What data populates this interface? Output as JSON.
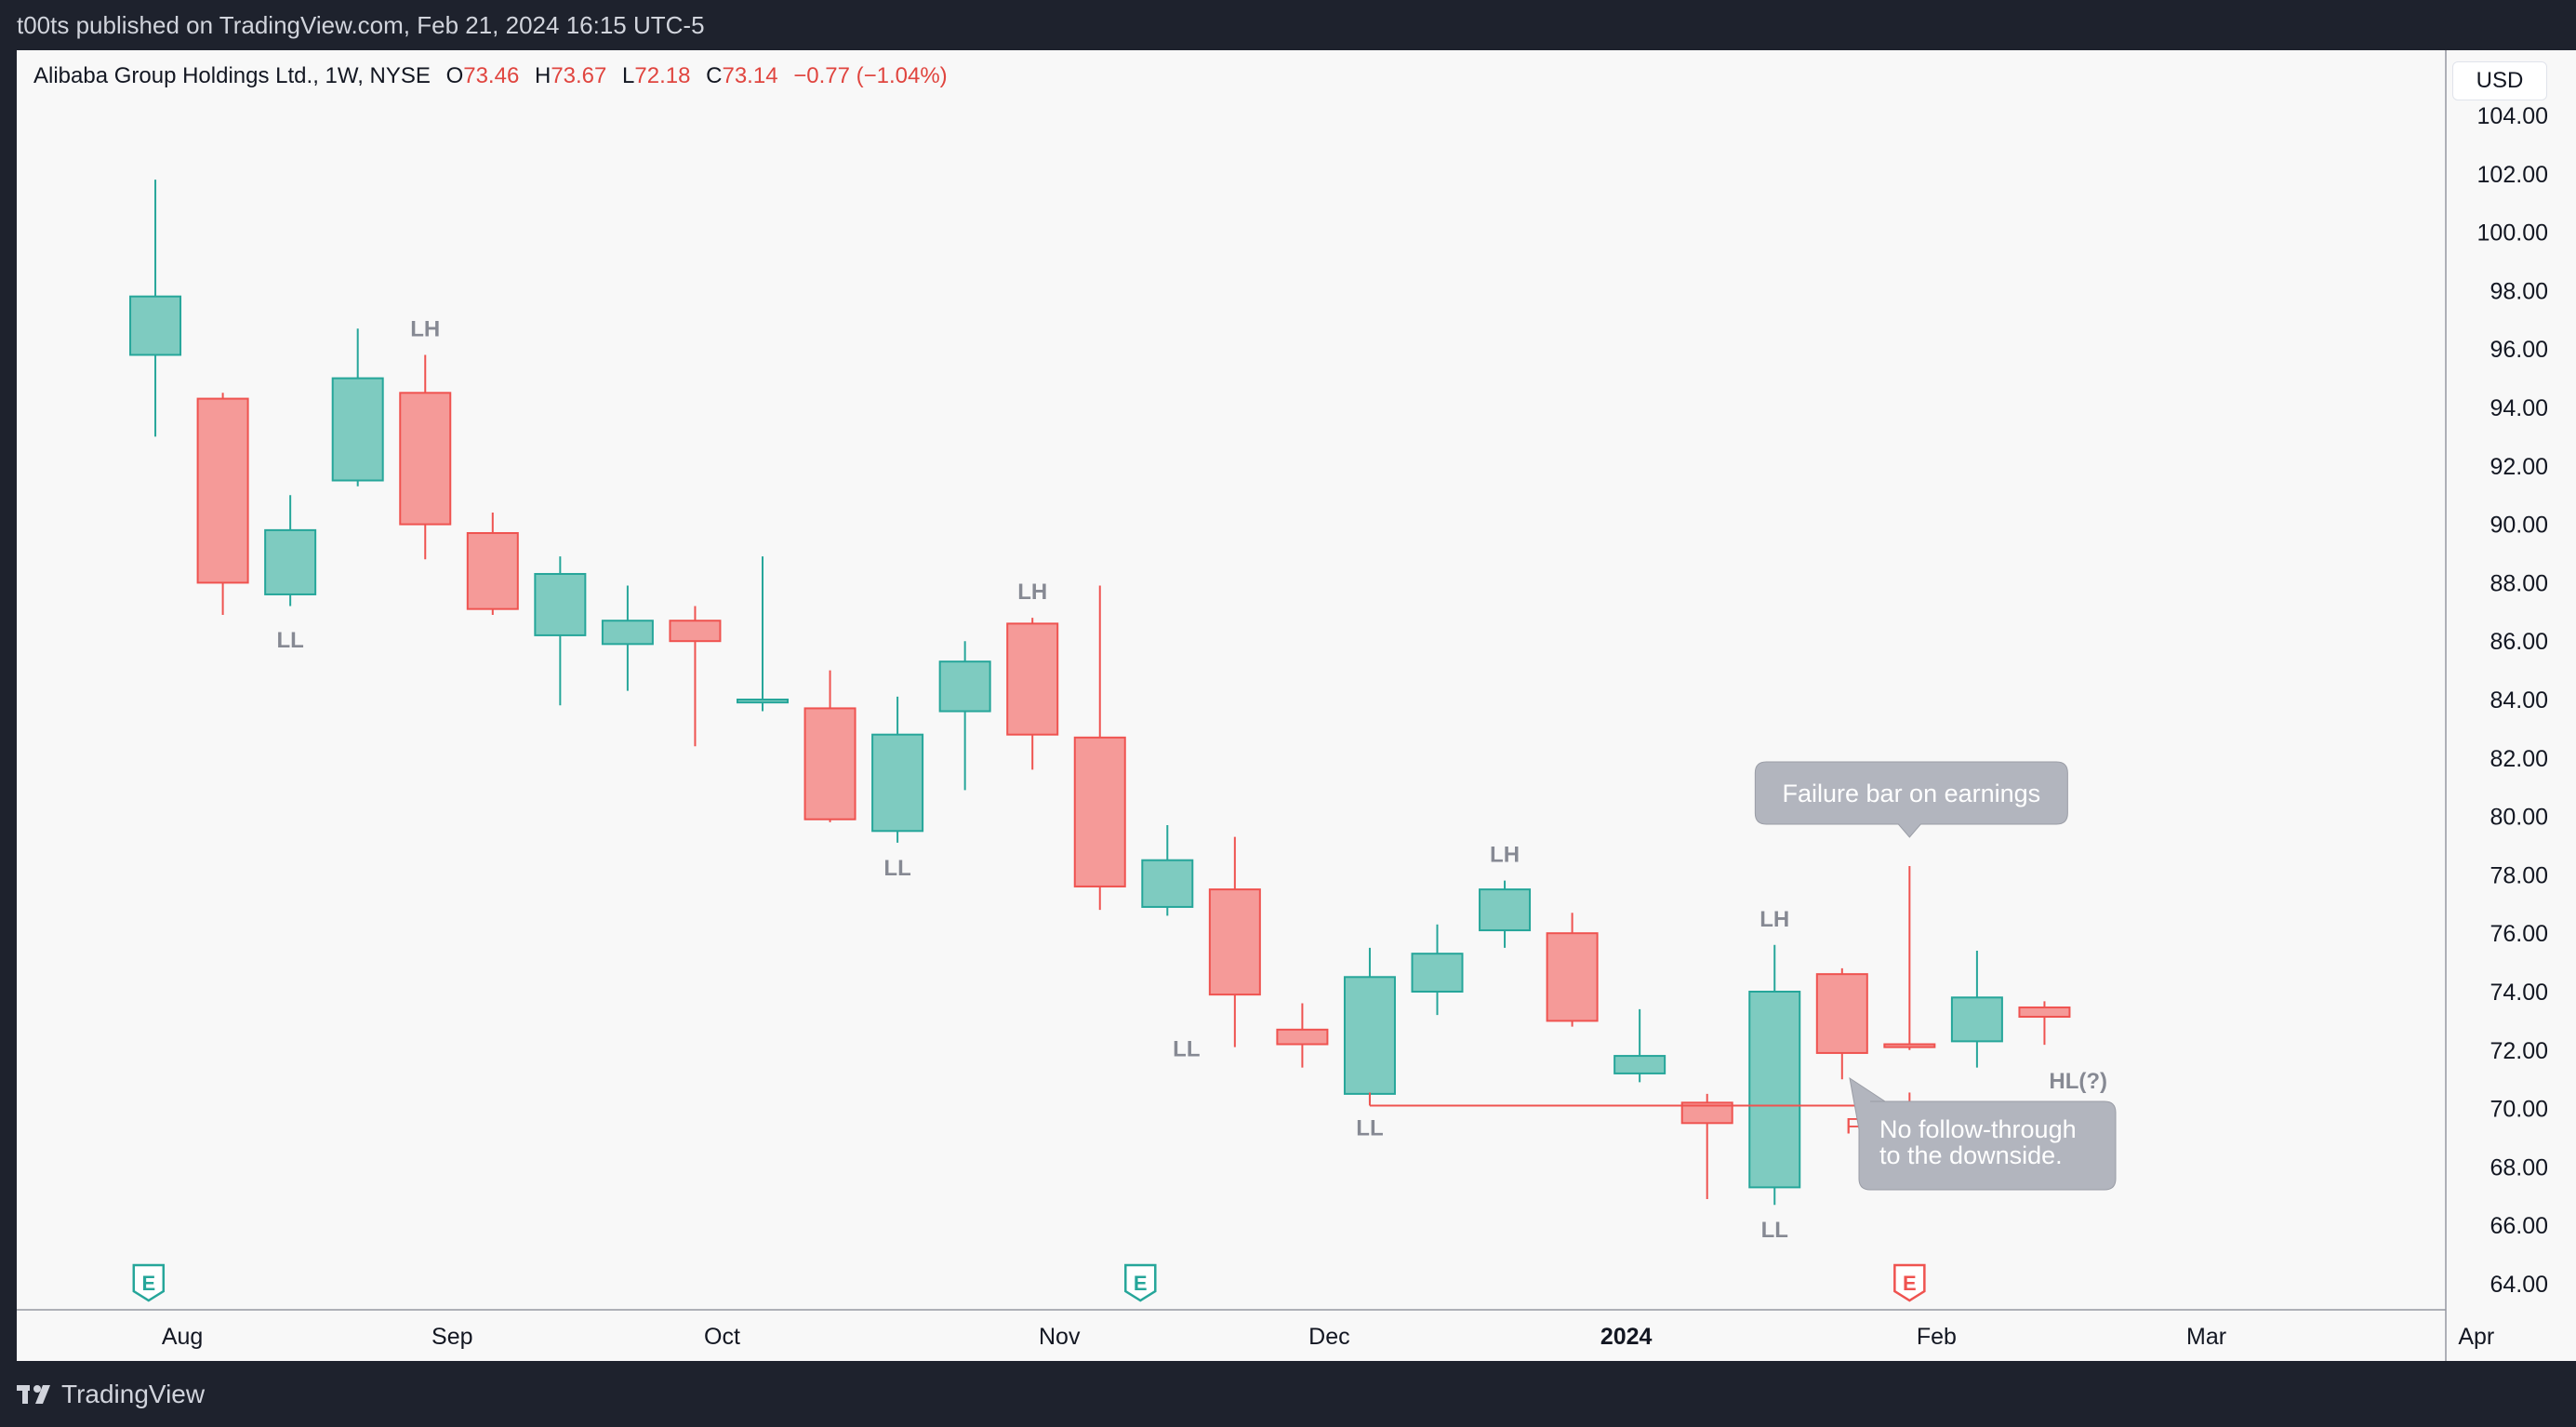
{
  "topbar": {
    "text": "t00ts published on TradingView.com, Feb 21, 2024 16:15 UTC-5"
  },
  "header": {
    "symbol": "Alibaba Group Holdings Ltd., 1W, NYSE",
    "open_label": "O",
    "open": "73.46",
    "high_label": "H",
    "high": "73.67",
    "low_label": "L",
    "low": "72.18",
    "close_label": "C",
    "close": "73.14",
    "change": "−0.77 (−1.04%)"
  },
  "currency_button": "USD",
  "footer": {
    "brand": "TradingView"
  },
  "colors": {
    "up": "#26a69a",
    "up_fill": "#7ecbc0",
    "down": "#ef5350",
    "down_fill": "#f59a98",
    "label": "#868993",
    "callout": "#b2b5be"
  },
  "chart_data": {
    "type": "candlestick",
    "title": "",
    "xlabel": "",
    "ylabel": "",
    "ylim": [
      63,
      104.5
    ],
    "y_ticks": [
      "64.00",
      "66.00",
      "68.00",
      "70.00",
      "72.00",
      "74.00",
      "76.00",
      "78.00",
      "80.00",
      "82.00",
      "84.00",
      "86.00",
      "88.00",
      "90.00",
      "92.00",
      "94.00",
      "96.00",
      "98.00",
      "100.00",
      "102.00",
      "104.00"
    ],
    "x_ticks": [
      {
        "week": -0.6,
        "label": "Aug",
        "bold": false
      },
      {
        "week": 3.4,
        "label": "Sep",
        "bold": false
      },
      {
        "week": 7.4,
        "label": "Oct",
        "bold": false
      },
      {
        "week": 12.4,
        "label": "Nov",
        "bold": false
      },
      {
        "week": 16.4,
        "label": "Dec",
        "bold": false
      },
      {
        "week": 20.8,
        "label": "2024",
        "bold": true
      },
      {
        "week": 25.4,
        "label": "Feb",
        "bold": false
      },
      {
        "week": 29.4,
        "label": "Mar",
        "bold": false
      },
      {
        "week": 33.4,
        "label": "Apr",
        "bold": false
      }
    ],
    "candles": [
      {
        "week": -1,
        "o": 95.8,
        "h": 101.8,
        "l": 93.0,
        "c": 97.8
      },
      {
        "week": 0,
        "o": 94.3,
        "h": 94.5,
        "l": 86.9,
        "c": 88.0
      },
      {
        "week": 1,
        "o": 87.6,
        "h": 91.0,
        "l": 87.2,
        "c": 89.8
      },
      {
        "week": 2,
        "o": 91.5,
        "h": 96.7,
        "l": 91.3,
        "c": 95.0
      },
      {
        "week": 3,
        "o": 94.5,
        "h": 95.8,
        "l": 88.8,
        "c": 90.0
      },
      {
        "week": 4,
        "o": 89.7,
        "h": 90.4,
        "l": 86.9,
        "c": 87.1
      },
      {
        "week": 5,
        "o": 86.2,
        "h": 88.9,
        "l": 83.8,
        "c": 88.3
      },
      {
        "week": 6,
        "o": 85.9,
        "h": 87.9,
        "l": 84.3,
        "c": 86.7
      },
      {
        "week": 7,
        "o": 86.7,
        "h": 87.2,
        "l": 82.4,
        "c": 86.0
      },
      {
        "week": 8,
        "o": 83.9,
        "h": 88.9,
        "l": 83.6,
        "c": 84.0
      },
      {
        "week": 9,
        "o": 83.7,
        "h": 85.0,
        "l": 79.8,
        "c": 79.9
      },
      {
        "week": 10,
        "o": 79.5,
        "h": 84.1,
        "l": 79.1,
        "c": 82.8
      },
      {
        "week": 11,
        "o": 83.6,
        "h": 86.0,
        "l": 80.9,
        "c": 85.3
      },
      {
        "week": 12,
        "o": 86.6,
        "h": 86.8,
        "l": 81.6,
        "c": 82.8
      },
      {
        "week": 13,
        "o": 82.7,
        "h": 87.9,
        "l": 76.8,
        "c": 77.6
      },
      {
        "week": 14,
        "o": 76.9,
        "h": 79.7,
        "l": 76.6,
        "c": 78.5
      },
      {
        "week": 15,
        "o": 77.5,
        "h": 79.3,
        "l": 72.1,
        "c": 73.9
      },
      {
        "week": 16,
        "o": 72.7,
        "h": 73.6,
        "l": 71.4,
        "c": 72.2
      },
      {
        "week": 17,
        "o": 70.5,
        "h": 75.5,
        "l": 70.2,
        "c": 74.5
      },
      {
        "week": 18,
        "o": 74.0,
        "h": 76.3,
        "l": 73.2,
        "c": 75.3
      },
      {
        "week": 19,
        "o": 76.1,
        "h": 77.8,
        "l": 75.5,
        "c": 77.5
      },
      {
        "week": 20,
        "o": 76.0,
        "h": 76.7,
        "l": 72.8,
        "c": 73.0
      },
      {
        "week": 21,
        "o": 71.2,
        "h": 73.4,
        "l": 70.9,
        "c": 71.8
      },
      {
        "week": 22,
        "o": 70.2,
        "h": 70.5,
        "l": 66.9,
        "c": 69.5
      },
      {
        "week": 23,
        "o": 67.3,
        "h": 75.6,
        "l": 66.7,
        "c": 74.0
      },
      {
        "week": 24,
        "o": 74.6,
        "h": 74.8,
        "l": 71.0,
        "c": 71.9
      },
      {
        "week": 25,
        "o": 72.2,
        "h": 78.3,
        "l": 72.0,
        "c": 72.1
      },
      {
        "week": 26,
        "o": 72.3,
        "h": 75.4,
        "l": 71.4,
        "c": 73.8
      },
      {
        "week": 27,
        "o": 73.46,
        "h": 73.67,
        "l": 72.18,
        "c": 73.14
      }
    ],
    "swing_labels": [
      {
        "week": 1,
        "price": 86.9,
        "pos": "below",
        "text": "LL"
      },
      {
        "week": 3,
        "price": 95.8,
        "pos": "above",
        "text": "LH"
      },
      {
        "week": 10,
        "price": 79.1,
        "pos": "below",
        "text": "LL"
      },
      {
        "week": 12,
        "price": 86.8,
        "pos": "above",
        "text": "LH"
      },
      {
        "week": 15,
        "price": 72.1,
        "pos": "left",
        "text": "LL"
      },
      {
        "week": 17,
        "price": 70.2,
        "pos": "below",
        "text": "LL"
      },
      {
        "week": 19,
        "price": 77.8,
        "pos": "above",
        "text": "LH"
      },
      {
        "week": 23,
        "price": 75.6,
        "pos": "above",
        "text": "LH"
      },
      {
        "week": 23,
        "price": 66.7,
        "pos": "below",
        "text": "LL"
      },
      {
        "week": 27.5,
        "price": 71.8,
        "pos": "below",
        "text": "HL(?)"
      }
    ],
    "ftgl": {
      "from_week": 17,
      "to_week": 25,
      "price": 70.1,
      "label": "FTGL"
    },
    "callouts": [
      {
        "text": "Failure bar on earnings",
        "week": 25
      },
      {
        "text": "No follow-through\nto the downside.",
        "week": 26
      }
    ],
    "earnings_markers": [
      {
        "week": -1.1,
        "label": "E"
      },
      {
        "week": 13.6,
        "label": "E"
      },
      {
        "week": 25,
        "label": "E"
      }
    ]
  }
}
